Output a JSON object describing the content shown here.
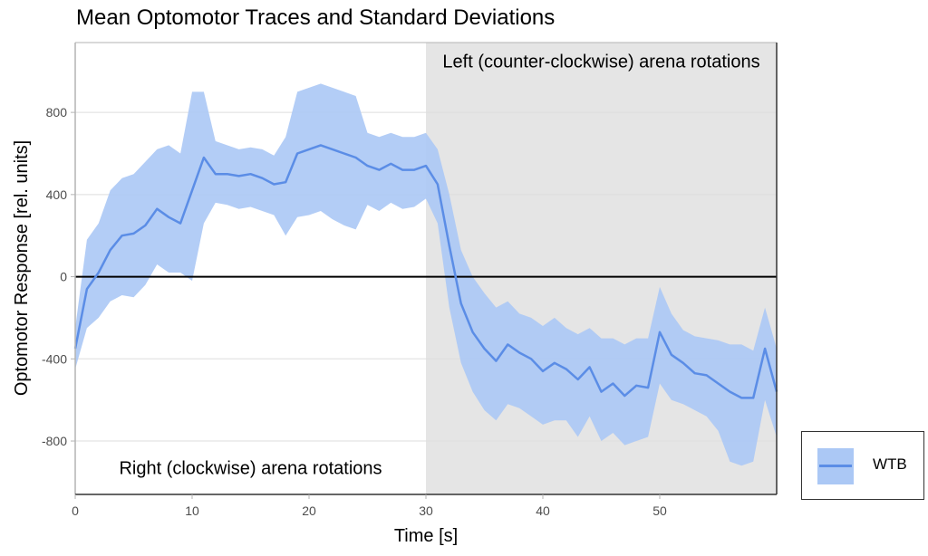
{
  "title": "Mean Optomotor Traces and Standard Deviations",
  "legend": {
    "label": "WTB"
  },
  "colors": {
    "mean_line": "#5b8de6",
    "sd_band": "#abc8f5",
    "shaded_region": "#e5e5e5",
    "grid": "#dedede",
    "zero_line": "#000000"
  },
  "chart_data": {
    "type": "area",
    "title": "Mean Optomotor Traces and Standard Deviations",
    "xlabel": "Time [s]",
    "ylabel": "Optomotor Response [rel. units]",
    "xlim": [
      0,
      60
    ],
    "ylim": [
      -1060,
      1140
    ],
    "xticks": [
      0,
      10,
      20,
      30,
      40,
      50
    ],
    "yticks": [
      -800,
      -400,
      0,
      400,
      800
    ],
    "grid": true,
    "legend_position": "right-bottom",
    "shaded_x_range": [
      30,
      60
    ],
    "hline": 0,
    "annotations": [
      {
        "text": "Left (counter-clockwise) arena rotations",
        "x": 45,
        "y": 1050
      },
      {
        "text": "Right (clockwise) arena rotations",
        "x": 15,
        "y": -930
      }
    ],
    "x": [
      0,
      1,
      2,
      3,
      4,
      5,
      6,
      7,
      8,
      9,
      10,
      11,
      12,
      13,
      14,
      15,
      16,
      17,
      18,
      19,
      20,
      21,
      22,
      23,
      24,
      25,
      26,
      27,
      28,
      29,
      30,
      31,
      32,
      33,
      34,
      35,
      36,
      37,
      38,
      39,
      40,
      41,
      42,
      43,
      44,
      45,
      46,
      47,
      48,
      49,
      50,
      51,
      52,
      53,
      54,
      55,
      56,
      57,
      58,
      59,
      60
    ],
    "series": [
      {
        "name": "WTB",
        "mean": [
          -350,
          -60,
          20,
          130,
          200,
          210,
          250,
          330,
          290,
          260,
          420,
          580,
          500,
          500,
          490,
          500,
          480,
          450,
          460,
          600,
          620,
          640,
          620,
          600,
          580,
          540,
          520,
          550,
          520,
          520,
          540,
          450,
          150,
          -130,
          -270,
          -350,
          -410,
          -330,
          -370,
          -400,
          -460,
          -420,
          -450,
          -500,
          -440,
          -560,
          -520,
          -580,
          -530,
          -540,
          -270,
          -380,
          -420,
          -470,
          -480,
          -520,
          -560,
          -590,
          -590,
          -350,
          -560
        ],
        "upper": [
          -250,
          180,
          260,
          420,
          480,
          500,
          560,
          620,
          640,
          600,
          900,
          900,
          660,
          640,
          620,
          630,
          620,
          590,
          680,
          900,
          920,
          940,
          920,
          900,
          880,
          700,
          680,
          700,
          680,
          680,
          700,
          620,
          400,
          130,
          0,
          -80,
          -150,
          -120,
          -180,
          -200,
          -240,
          -200,
          -250,
          -280,
          -250,
          -300,
          -300,
          -330,
          -300,
          -300,
          -50,
          -180,
          -260,
          -290,
          -300,
          -310,
          -330,
          -330,
          -360,
          -150,
          -350
        ],
        "lower": [
          -450,
          -250,
          -200,
          -120,
          -90,
          -100,
          -40,
          60,
          20,
          20,
          -20,
          260,
          360,
          350,
          330,
          340,
          320,
          300,
          200,
          290,
          300,
          320,
          280,
          250,
          230,
          350,
          320,
          360,
          330,
          340,
          380,
          260,
          -150,
          -420,
          -560,
          -650,
          -700,
          -620,
          -640,
          -680,
          -720,
          -700,
          -700,
          -780,
          -680,
          -800,
          -760,
          -820,
          -800,
          -780,
          -520,
          -600,
          -620,
          -650,
          -680,
          -750,
          -900,
          -920,
          -900,
          -600,
          -780
        ]
      }
    ]
  }
}
